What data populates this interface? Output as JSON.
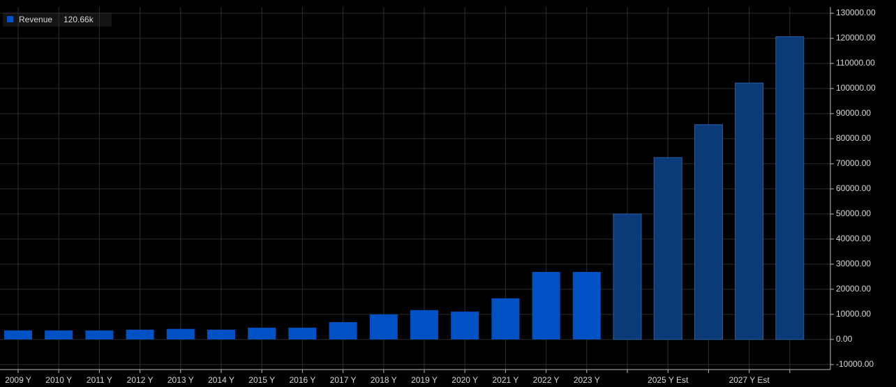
{
  "chart_data": {
    "type": "bar",
    "categories": [
      "2009 Y",
      "2010 Y",
      "2011 Y",
      "2012 Y",
      "2013 Y",
      "2014 Y",
      "2015 Y",
      "2016 Y",
      "2017 Y",
      "2018 Y",
      "2019 Y",
      "2020 Y",
      "2021 Y",
      "2022 Y",
      "2023 Y",
      null,
      "2025 Y Est",
      null,
      "2027 Y Est",
      null
    ],
    "series": [
      {
        "name": "Revenue",
        "legend_label": "120.66k",
        "colors": [
          "#0052c4",
          "#0052c4",
          "#0052c4",
          "#0052c4",
          "#0052c4",
          "#0052c4",
          "#0052c4",
          "#0052c4",
          "#0052c4",
          "#0052c4",
          "#0052c4",
          "#0052c4",
          "#0052c4",
          "#0052c4",
          "#0052c4",
          "#0b3a78",
          "#0b3a78",
          "#0b3a78",
          "#0b3a78",
          "#0b3a78"
        ],
        "values": [
          3600,
          3600,
          3600,
          3900,
          4200,
          3900,
          4700,
          4700,
          6900,
          10000,
          11700,
          11100,
          16400,
          26900,
          26900,
          50000,
          72500,
          85600,
          102200,
          120660
        ]
      }
    ],
    "ylim": [
      -12000,
      132500
    ],
    "yticks": [
      {
        "value": -10000,
        "label": "-10000.00"
      },
      {
        "value": 0,
        "label": "0.00"
      },
      {
        "value": 10000,
        "label": "10000.00"
      },
      {
        "value": 20000,
        "label": "20000.00"
      },
      {
        "value": 30000,
        "label": "30000.00"
      },
      {
        "value": 40000,
        "label": "40000.00"
      },
      {
        "value": 50000,
        "label": "50000.00"
      },
      {
        "value": 60000,
        "label": "60000.00"
      },
      {
        "value": 70000,
        "label": "70000.00"
      },
      {
        "value": 80000,
        "label": "80000.00"
      },
      {
        "value": 90000,
        "label": "90000.00"
      },
      {
        "value": 100000,
        "label": "100000.00"
      },
      {
        "value": 110000,
        "label": "110000.00"
      },
      {
        "value": 120000,
        "label": "120000.00"
      },
      {
        "value": 130000,
        "label": "130000.00"
      }
    ],
    "grid": true
  }
}
